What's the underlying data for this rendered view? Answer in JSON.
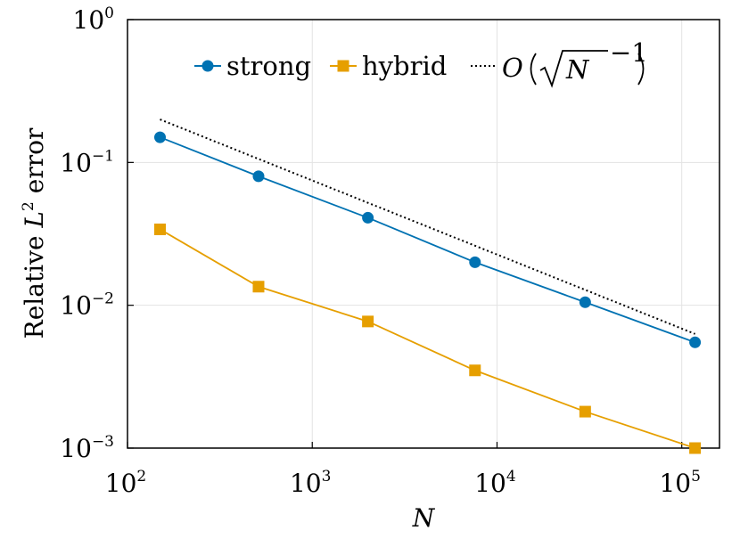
{
  "chart_data": {
    "type": "line",
    "x_scale": "log",
    "y_scale": "log",
    "xlim": [
      100,
      160000
    ],
    "ylim": [
      0.001,
      1
    ],
    "grid": true,
    "legend_position": "top",
    "xlabel": "N",
    "ylabel": {
      "prefix": "Relative ",
      "symbol": "L",
      "superscript": "2",
      "suffix": " error"
    },
    "x_ticks": [
      {
        "value": 100,
        "base": "10",
        "exp": "2"
      },
      {
        "value": 1000,
        "base": "10",
        "exp": "3"
      },
      {
        "value": 10000,
        "base": "10",
        "exp": "4"
      },
      {
        "value": 100000,
        "base": "10",
        "exp": "5"
      }
    ],
    "y_ticks": [
      {
        "value": 1,
        "base": "10",
        "exp": "0"
      },
      {
        "value": 0.1,
        "base": "10",
        "exp": "−1"
      },
      {
        "value": 0.01,
        "base": "10",
        "exp": "−2"
      },
      {
        "value": 0.001,
        "base": "10",
        "exp": "−3"
      }
    ],
    "series": [
      {
        "name": "strong",
        "color": "#0072b2",
        "marker": "circle",
        "x": [
          150,
          512,
          2000,
          7600,
          30000,
          118000
        ],
        "y": [
          0.15,
          0.08,
          0.041,
          0.02,
          0.0105,
          0.0055
        ]
      },
      {
        "name": "hybrid",
        "color": "#e69f00",
        "marker": "square",
        "x": [
          150,
          512,
          2000,
          7600,
          30000,
          118000
        ],
        "y": [
          0.034,
          0.0135,
          0.0077,
          0.0035,
          0.0018,
          0.001
        ]
      },
      {
        "name": "reference",
        "color": "#000000",
        "marker": "none",
        "dash": "dotted",
        "x": [
          150,
          118000
        ],
        "y": [
          0.2,
          0.0063
        ]
      }
    ],
    "legend": [
      {
        "label": "strong",
        "series": "strong"
      },
      {
        "label": "hybrid",
        "series": "hybrid"
      },
      {
        "label": "O(√N⁻¹)",
        "series": "reference",
        "parts": {
          "o": "O",
          "n": "N",
          "exp": "−1"
        }
      }
    ]
  }
}
